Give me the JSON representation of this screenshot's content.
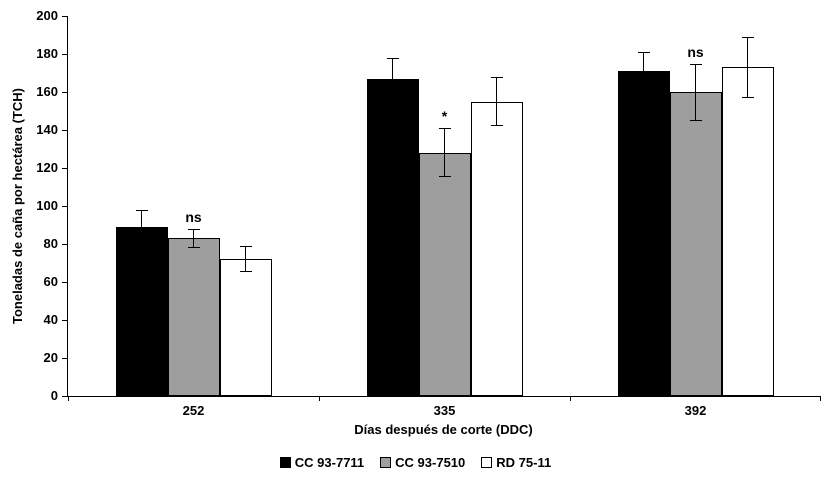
{
  "chart_data": {
    "type": "bar",
    "title": "",
    "xlabel": "Días después de corte (DDC)",
    "ylabel": "Toneladas de caña por hectárea (TCH)",
    "ylim": [
      0,
      200
    ],
    "ytick_step": 20,
    "yticks": [
      0,
      20,
      40,
      60,
      80,
      100,
      120,
      140,
      160,
      180,
      200
    ],
    "categories": [
      "252",
      "335",
      "392"
    ],
    "series": [
      {
        "name": "CC 93-7711",
        "color": "#000000",
        "values": [
          89,
          167,
          171
        ],
        "errors": [
          9,
          11,
          10
        ]
      },
      {
        "name": "CC 93-7510",
        "color": "#9e9e9e",
        "values": [
          83,
          128,
          160
        ],
        "errors": [
          5,
          13,
          15
        ]
      },
      {
        "name": "RD 75-11",
        "color": "#ffffff",
        "values": [
          72,
          155,
          173
        ],
        "errors": [
          7,
          13,
          16
        ]
      }
    ],
    "annotations": [
      {
        "category_index": 0,
        "series_index": 1,
        "text": "ns"
      },
      {
        "category_index": 1,
        "series_index": 1,
        "text": "*"
      },
      {
        "category_index": 2,
        "series_index": 1,
        "text": "ns"
      }
    ],
    "legend_position": "bottom",
    "grid": "off",
    "error_bars": "on"
  },
  "colors": {
    "axis": "#000000",
    "background": "#ffffff"
  }
}
